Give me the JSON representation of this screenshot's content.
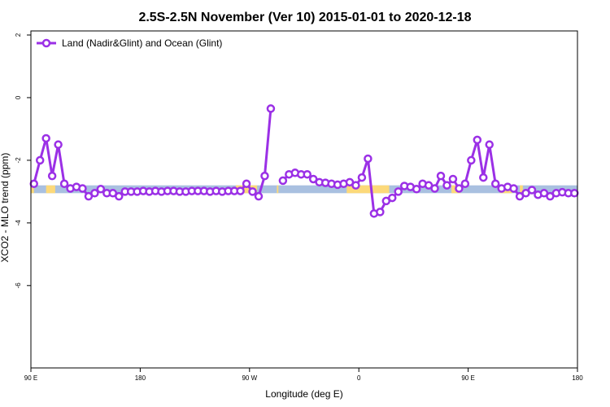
{
  "chart_data": {
    "type": "line",
    "title": "2.5S-2.5N November (Ver 10)   2015-01-01 to 2020-12-18",
    "xlabel": "Longitude (deg E)",
    "ylabel": "XCO2 - MLO trend (ppm)",
    "xlim": [
      90,
      450
    ],
    "ylim": [
      -8.5,
      2.0
    ],
    "x_ticks": [
      {
        "value": 90,
        "label": "90 E"
      },
      {
        "value": 162,
        "label": "180"
      },
      {
        "value": 234,
        "label": "90 W"
      },
      {
        "value": 306,
        "label": "0"
      },
      {
        "value": 378,
        "label": "90 E"
      },
      {
        "value": 450,
        "label": "180"
      }
    ],
    "y_ticks": [
      {
        "value": 2,
        "label": "2"
      },
      {
        "value": 0,
        "label": "0"
      },
      {
        "value": -2,
        "label": "-2"
      },
      {
        "value": -4,
        "label": "-4"
      },
      {
        "value": -6,
        "label": "-6"
      }
    ],
    "grid": false,
    "legend_position": "top-left",
    "line_color": "#9b30e6",
    "surface_band": {
      "y_top": -2.8,
      "y_bottom": -3.05,
      "ocean_color": "#a9c0e0",
      "land_color": "#fcd97a",
      "land_spans": [
        [
          90,
          92
        ],
        [
          100,
          106
        ],
        [
          225,
          239
        ],
        [
          252,
          253
        ],
        [
          298,
          326
        ],
        [
          367,
          373
        ],
        [
          399,
          407
        ],
        [
          412,
          414
        ]
      ]
    },
    "series": [
      {
        "name": "Land (Nadir&Glint) and Ocean (Glint)",
        "x": [
          92,
          96,
          100,
          104,
          108,
          112,
          116,
          120,
          124,
          128,
          132,
          136,
          140,
          144,
          148,
          152,
          156,
          160,
          164,
          168,
          172,
          176,
          180,
          184,
          188,
          192,
          196,
          200,
          204,
          208,
          212,
          216,
          220,
          224,
          228,
          232,
          236,
          240,
          244,
          248,
          252,
          256,
          260,
          264,
          268,
          272,
          276,
          280,
          284,
          288,
          292,
          296,
          300,
          304,
          308,
          312,
          316,
          320,
          324,
          328,
          332,
          336,
          340,
          344,
          348,
          352,
          356,
          360,
          364,
          368,
          372,
          376,
          380,
          384,
          388,
          392,
          396,
          400,
          404,
          408,
          412,
          416,
          420,
          424,
          428,
          432,
          436,
          440,
          444,
          448
        ],
        "values": [
          -2.75,
          -2.0,
          -1.3,
          -2.5,
          -1.5,
          -2.75,
          -2.9,
          -2.85,
          -2.9,
          -3.15,
          -3.05,
          -2.92,
          -3.05,
          -3.05,
          -3.15,
          -3.0,
          -3.0,
          -3.0,
          -2.98,
          -3.0,
          -2.98,
          -3.0,
          -2.98,
          -2.98,
          -3.0,
          -3.0,
          -2.98,
          -2.98,
          -2.98,
          -3.0,
          -2.98,
          -3.0,
          -2.98,
          -2.98,
          -2.98,
          -2.75,
          -3.0,
          -3.15,
          -2.5,
          -0.35,
          null,
          -2.65,
          -2.45,
          -2.4,
          -2.45,
          -2.45,
          -2.6,
          -2.7,
          -2.72,
          -2.75,
          -2.78,
          -2.75,
          -2.7,
          -2.8,
          -2.55,
          -1.95,
          -3.7,
          -3.65,
          -3.3,
          -3.2,
          -3.0,
          -2.82,
          -2.85,
          -2.92,
          -2.75,
          -2.8,
          -2.9,
          -2.5,
          -2.8,
          -2.6,
          -2.9,
          -2.75,
          -2.0,
          -1.35,
          -2.55,
          -1.5,
          -2.75,
          -2.9,
          -2.85,
          -2.9,
          -3.15,
          -3.05,
          -2.95,
          -3.1,
          -3.05,
          -3.15,
          -3.05,
          -3.02,
          -3.05,
          -3.05
        ]
      }
    ]
  }
}
